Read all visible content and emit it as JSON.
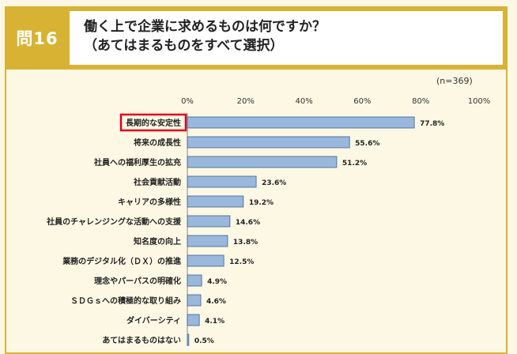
{
  "question": {
    "badge": "問16",
    "line1": "働く上で企業に求めるものは何ですか？",
    "line2": "（あてはまるものをすべて選択）"
  },
  "sample_size": "(n=369)",
  "highlight_color": "#e0001b",
  "bar_color": "#9ab8dc",
  "chart_data": {
    "type": "bar",
    "orientation": "horizontal",
    "categories": [
      "長期的な安定性",
      "将来の成長性",
      "社員への福利厚生の拡充",
      "社会貢献活動",
      "キャリアの多様性",
      "社員のチャレンジングな活動への支援",
      "知名度の向上",
      "業務のデジタル化（ＤＸ）の推進",
      "理念やパーパスの明確化",
      "ＳＤＧｓへの積極的な取り組み",
      "ダイバーシティ",
      "あてはまるものはない"
    ],
    "values": [
      77.8,
      55.6,
      51.2,
      23.6,
      19.2,
      14.6,
      13.8,
      12.5,
      4.9,
      4.6,
      4.1,
      0.5
    ],
    "value_labels": [
      "77.8%",
      "55.6%",
      "51.2%",
      "23.6%",
      "19.2%",
      "14.6%",
      "13.8%",
      "12.5%",
      "4.9%",
      "4.6%",
      "4.1%",
      "0.5%"
    ],
    "xlim": [
      0,
      100
    ],
    "ticks": [
      0,
      20,
      40,
      60,
      80,
      100
    ],
    "tick_labels": [
      "0%",
      "20%",
      "40%",
      "60%",
      "80%",
      "100%"
    ],
    "highlighted_category": "長期的な安定性"
  }
}
